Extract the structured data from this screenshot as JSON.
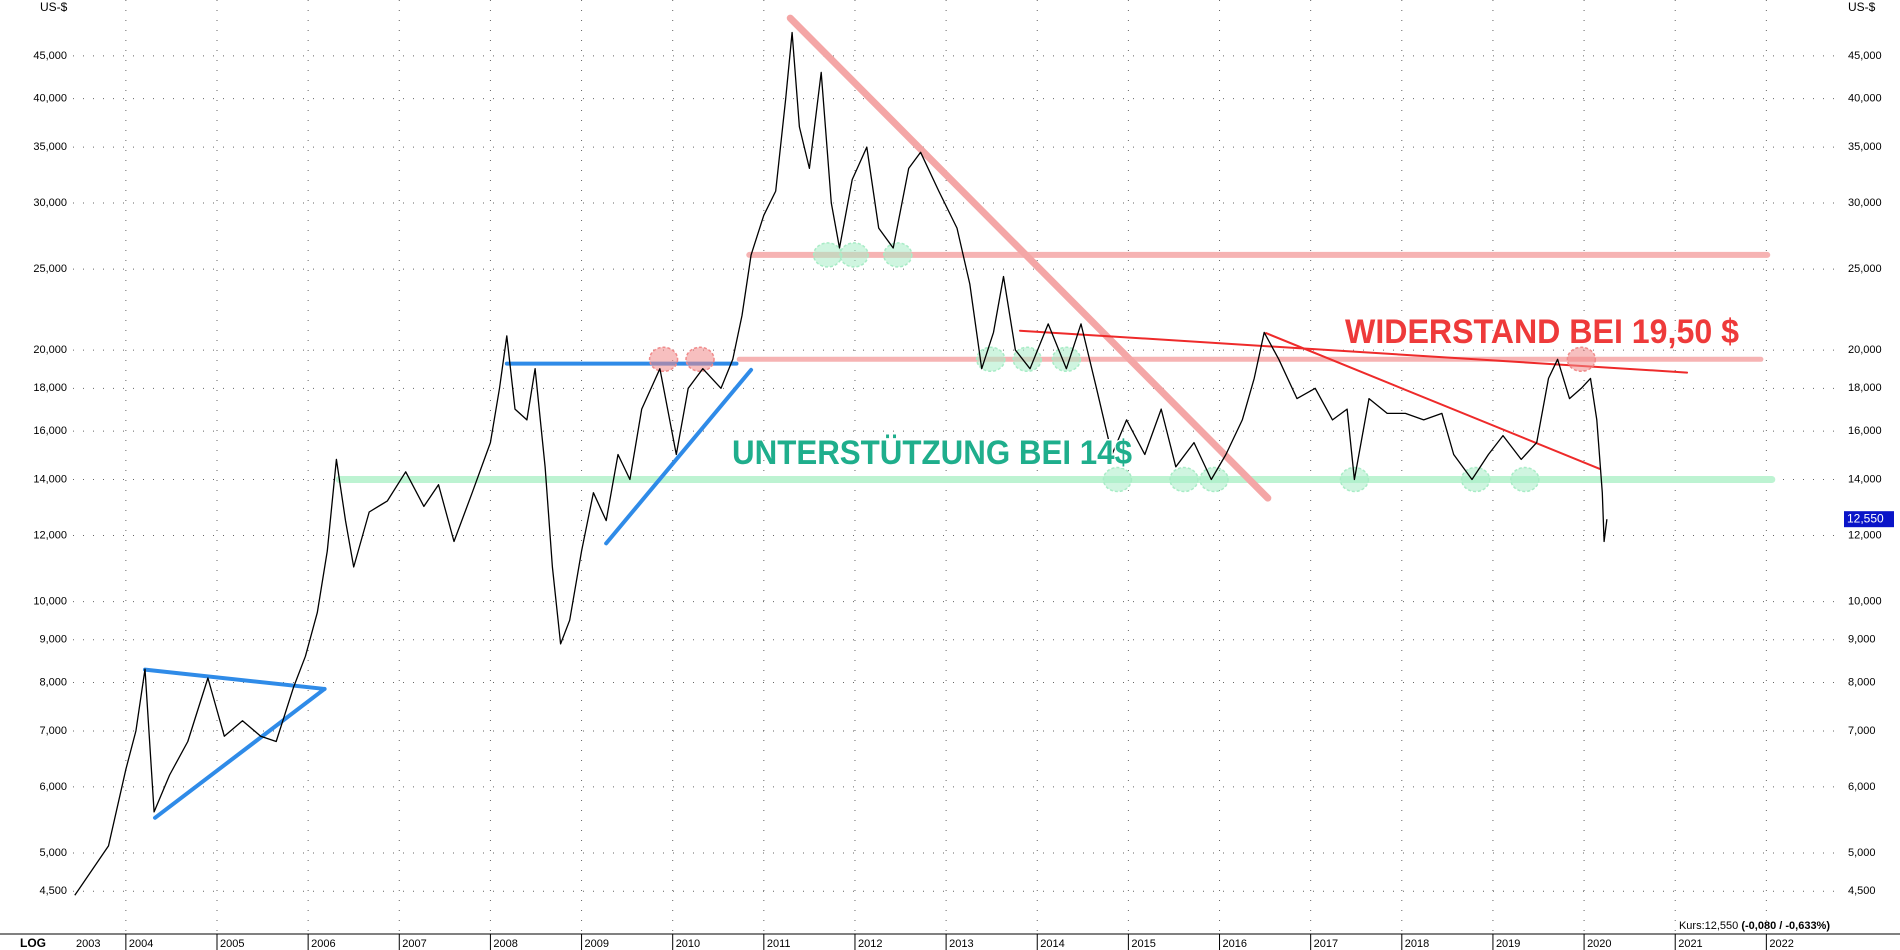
{
  "chart_data": {
    "type": "line",
    "ylabel": "US-$",
    "scale_label": "LOG",
    "log": true,
    "grid": true,
    "color": "#000000",
    "x": [
      2003.44,
      2003.81,
      2004.0,
      2004.11,
      2004.21,
      2004.31,
      2004.48,
      2004.68,
      2004.9,
      2005.08,
      2005.28,
      2005.48,
      2005.65,
      2005.84,
      2005.97,
      2006.1,
      2006.21,
      2006.31,
      2006.41,
      2006.5,
      2006.67,
      2006.87,
      2007.07,
      2007.27,
      2007.43,
      2007.6,
      2007.8,
      2008.0,
      2008.1,
      2008.18,
      2008.27,
      2008.4,
      2008.49,
      2008.6,
      2008.68,
      2008.77,
      2008.87,
      2009.0,
      2009.13,
      2009.27,
      2009.4,
      2009.53,
      2009.66,
      2009.86,
      2010.04,
      2010.17,
      2010.33,
      2010.53,
      2010.66,
      2010.76,
      2010.86,
      2011.0,
      2011.13,
      2011.24,
      2011.31,
      2011.39,
      2011.5,
      2011.63,
      2011.74,
      2011.83,
      2011.97,
      2012.13,
      2012.26,
      2012.42,
      2012.59,
      2012.72,
      2012.92,
      2013.12,
      2013.26,
      2013.39,
      2013.52,
      2013.63,
      2013.76,
      2013.92,
      2014.12,
      2014.32,
      2014.48,
      2014.65,
      2014.82,
      2014.98,
      2015.18,
      2015.36,
      2015.52,
      2015.72,
      2015.91,
      2016.07,
      2016.25,
      2016.38,
      2016.49,
      2016.65,
      2016.85,
      2017.05,
      2017.24,
      2017.4,
      2017.48,
      2017.64,
      2017.84,
      2018.04,
      2018.24,
      2018.44,
      2018.57,
      2018.77,
      2018.95,
      2019.11,
      2019.31,
      2019.48,
      2019.61,
      2019.71,
      2019.84,
      2019.97,
      2020.07,
      2020.14,
      2020.2,
      2020.22,
      2020.25
    ],
    "values": [
      4450,
      5100,
      6300,
      7000,
      8300,
      5600,
      6200,
      6800,
      8100,
      6900,
      7200,
      6900,
      6800,
      7900,
      8600,
      9700,
      11500,
      14800,
      12500,
      11000,
      12800,
      13200,
      14300,
      13000,
      13800,
      11800,
      13500,
      15500,
      18000,
      20800,
      17000,
      16500,
      19000,
      14500,
      11000,
      8900,
      9500,
      11500,
      13500,
      12500,
      15000,
      14000,
      17000,
      19000,
      15000,
      18000,
      19000,
      18000,
      19500,
      22000,
      26000,
      29000,
      31000,
      40000,
      48000,
      37000,
      33000,
      43000,
      30000,
      26500,
      32000,
      35000,
      28000,
      26500,
      33000,
      34500,
      31000,
      28000,
      24000,
      19000,
      21000,
      24500,
      20000,
      19000,
      21500,
      19000,
      21500,
      18000,
      15000,
      16500,
      15000,
      17000,
      14500,
      15500,
      14000,
      15000,
      16500,
      18500,
      21000,
      19500,
      17500,
      18000,
      16500,
      17000,
      14000,
      17500,
      16800,
      16800,
      16500,
      16800,
      15000,
      14000,
      15000,
      15800,
      14800,
      15500,
      18500,
      19500,
      17500,
      18000,
      18500,
      16500,
      13500,
      11800,
      12550
    ],
    "xlim": [
      2003.42,
      2022.83
    ],
    "ylim": [
      4000,
      52500
    ],
    "xticks": [
      2003,
      2004,
      2005,
      2006,
      2007,
      2008,
      2009,
      2010,
      2011,
      2012,
      2013,
      2014,
      2015,
      2016,
      2017,
      2018,
      2019,
      2020,
      2021,
      2022
    ],
    "yticks": [
      {
        "value": 4500,
        "label": "4,500"
      },
      {
        "value": 5000,
        "label": "5,000"
      },
      {
        "value": 6000,
        "label": "6,000"
      },
      {
        "value": 7000,
        "label": "7,000"
      },
      {
        "value": 8000,
        "label": "8,000"
      },
      {
        "value": 9000,
        "label": "9,000"
      },
      {
        "value": 10000,
        "label": "10,000"
      },
      {
        "value": 12000,
        "label": "12,000"
      },
      {
        "value": 14000,
        "label": "14,000"
      },
      {
        "value": 16000,
        "label": "16,000"
      },
      {
        "value": 18000,
        "label": "18,000"
      },
      {
        "value": 20000,
        "label": "20,000"
      },
      {
        "value": 25000,
        "label": "25,000"
      },
      {
        "value": 30000,
        "label": "30,000"
      },
      {
        "value": 35000,
        "label": "35,000"
      },
      {
        "value": 40000,
        "label": "40,000"
      },
      {
        "value": 45000,
        "label": "45,000"
      }
    ],
    "last_price": {
      "value": 12550,
      "label": "12,550"
    },
    "quote": {
      "prefix": "Kurs:12,550",
      "change": "(-0,080 / -0,633%)"
    },
    "annotations": [
      {
        "text": "WIDERSTAND BEI 19,50 $",
        "color": "#ee3a3a"
      },
      {
        "text": "UNTERSTÜTZUNG BEI 14$",
        "color": "#1fae8c"
      }
    ],
    "drawings": [
      {
        "color": "#f6b3b3",
        "width": 6,
        "points": [
          [
            2010.84,
            26000
          ],
          [
            2022.01,
            26000
          ]
        ]
      },
      {
        "color": "#f6b3b3",
        "width": 5,
        "points": [
          [
            2010.73,
            19500
          ],
          [
            2021.94,
            19500
          ]
        ]
      },
      {
        "color": "#bdf3d2",
        "width": 7,
        "points": [
          [
            2006.34,
            14000
          ],
          [
            2022.06,
            14000
          ]
        ]
      },
      {
        "color": "#f4a6a6",
        "width": 7,
        "points": [
          [
            2011.29,
            49940
          ],
          [
            2016.53,
            13300
          ]
        ]
      },
      {
        "color": "#2f8be8",
        "width": 4,
        "points": [
          [
            2004.21,
            8290
          ],
          [
            2006.18,
            7860
          ]
        ]
      },
      {
        "color": "#2f8be8",
        "width": 4,
        "points": [
          [
            2004.32,
            5510
          ],
          [
            2006.18,
            7860
          ]
        ]
      },
      {
        "color": "#2f8be8",
        "width": 4,
        "points": [
          [
            2008.18,
            19270
          ],
          [
            2010.7,
            19270
          ]
        ]
      },
      {
        "color": "#2f8be8",
        "width": 4,
        "points": [
          [
            2009.27,
            11740
          ],
          [
            2010.86,
            18940
          ]
        ]
      },
      {
        "color": "#ee2a2a",
        "width": 2,
        "points": [
          [
            2013.81,
            21100
          ],
          [
            2021.13,
            18800
          ]
        ]
      },
      {
        "color": "#ee2a2a",
        "width": 2,
        "points": [
          [
            2016.51,
            20960
          ],
          [
            2020.17,
            14420
          ]
        ]
      }
    ],
    "markers": [
      {
        "color": "#a8ecc6",
        "points": [
          [
            2011.7,
            26000
          ],
          [
            2011.99,
            26000
          ],
          [
            2012.47,
            26000
          ],
          [
            2013.49,
            19500
          ],
          [
            2013.89,
            19500
          ],
          [
            2014.32,
            19500
          ],
          [
            2014.88,
            14000
          ],
          [
            2015.61,
            14000
          ],
          [
            2015.94,
            14000
          ],
          [
            2017.48,
            14000
          ],
          [
            2018.81,
            14000
          ],
          [
            2019.35,
            14000
          ]
        ]
      },
      {
        "color": "#f08a8a",
        "points": [
          [
            2009.9,
            19500
          ],
          [
            2010.3,
            19500
          ],
          [
            2019.97,
            19500
          ]
        ]
      }
    ]
  }
}
